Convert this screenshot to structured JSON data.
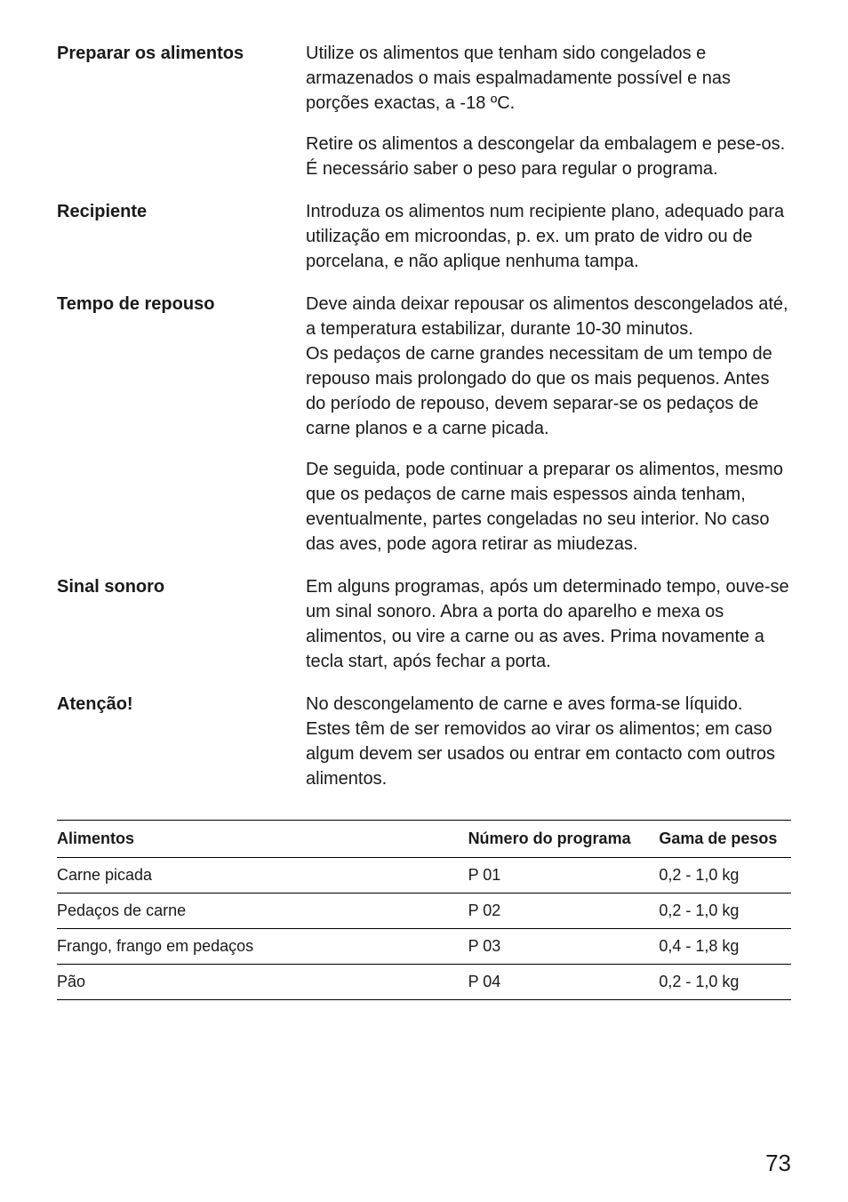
{
  "sections": [
    {
      "label": "Preparar os alimentos",
      "paragraphs": [
        "Utilize os alimentos que tenham sido congelados e armazenados o mais espalmadamente possível e nas porções exactas, a -18 ºC.",
        "Retire os alimentos a descongelar da embalagem e pese-os. É necessário saber o peso para regular o programa."
      ]
    },
    {
      "label": "Recipiente",
      "paragraphs": [
        "Introduza os alimentos num recipiente plano, adequado para utilização em microondas, p. ex. um prato de vidro ou de porcelana, e não aplique nenhuma tampa."
      ]
    },
    {
      "label": "Tempo de repouso",
      "paragraphs": [
        "Deve ainda deixar repousar os alimentos descongelados até, a temperatura estabilizar, durante 10-30 minutos.\nOs pedaços de carne grandes necessitam de um tempo de repouso mais prolongado do que os mais pequenos. Antes do período de repouso, devem separar-se os pedaços de carne planos e a carne picada.",
        "De seguida, pode continuar a preparar os alimentos, mesmo que os pedaços de carne mais espessos ainda tenham, eventualmente, partes congeladas no seu interior. No caso das aves, pode agora retirar as miudezas."
      ]
    },
    {
      "label": "Sinal sonoro",
      "paragraphs": [
        "Em alguns programas, após um determinado tempo, ouve-se um sinal sonoro. Abra a porta do aparelho e mexa os alimentos, ou vire a carne ou as aves. Prima novamente a tecla start, após fechar a porta."
      ]
    },
    {
      "label": "Atenção!",
      "paragraphs": [
        "No descongelamento de carne e aves forma-se líquido. Estes têm de ser removidos ao virar os alimentos; em caso algum devem ser usados ou entrar em contacto com outros alimentos."
      ]
    }
  ],
  "table": {
    "headers": [
      "Alimentos",
      "Número do programa",
      "Gama de pesos"
    ],
    "rows": [
      [
        "Carne picada",
        "P 01",
        "0,2 - 1,0 kg"
      ],
      [
        "Pedaços de carne",
        "P 02",
        "0,2 - 1,0 kg"
      ],
      [
        "Frango, frango em pedaços",
        "P 03",
        "0,4 - 1,8 kg"
      ],
      [
        "Pão",
        "P 04",
        "0,2 - 1,0 kg"
      ]
    ]
  },
  "page_number": "73"
}
